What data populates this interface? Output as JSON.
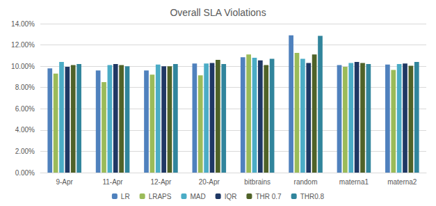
{
  "chart_data": {
    "type": "bar",
    "title": "Overall SLA Violations",
    "categories": [
      "9-Apr",
      "11-Apr",
      "12-Apr",
      "20-Apr",
      "bitbrains",
      "random",
      "materna1",
      "materna2"
    ],
    "series": [
      {
        "name": "LR",
        "color": "#4f81bd",
        "values": [
          9.8,
          9.6,
          9.6,
          10.25,
          10.85,
          12.9,
          10.1,
          10.15
        ]
      },
      {
        "name": "LRAPS",
        "color": "#9bbb59",
        "values": [
          9.3,
          8.5,
          9.2,
          9.15,
          11.1,
          11.25,
          9.95,
          9.65
        ]
      },
      {
        "name": "MAD",
        "color": "#4bacc6",
        "values": [
          10.4,
          10.1,
          10.15,
          10.25,
          10.8,
          10.7,
          10.3,
          10.2
        ]
      },
      {
        "name": "IQR",
        "color": "#1f3864",
        "values": [
          9.95,
          10.2,
          10.0,
          10.3,
          10.55,
          10.3,
          10.4,
          10.25
        ]
      },
      {
        "name": "THR 0.7",
        "color": "#4f6228",
        "values": [
          10.1,
          10.1,
          10.0,
          10.6,
          10.1,
          11.1,
          10.3,
          10.05
        ]
      },
      {
        "name": "THR0.8",
        "color": "#31859c",
        "values": [
          10.2,
          10.0,
          10.2,
          10.2,
          10.7,
          12.85,
          10.2,
          10.4
        ]
      }
    ],
    "ylim": [
      0,
      14
    ],
    "yticks": [
      {
        "value": 0,
        "label": "0.00%"
      },
      {
        "value": 2,
        "label": "2.00%"
      },
      {
        "value": 4,
        "label": "4.00%"
      },
      {
        "value": 6,
        "label": "6.00%"
      },
      {
        "value": 8,
        "label": "8.00%"
      },
      {
        "value": 10,
        "label": "10.00%"
      },
      {
        "value": 12,
        "label": "12.00%"
      },
      {
        "value": 14,
        "label": "14.00%"
      }
    ],
    "grid": true,
    "legend": "bottom"
  }
}
